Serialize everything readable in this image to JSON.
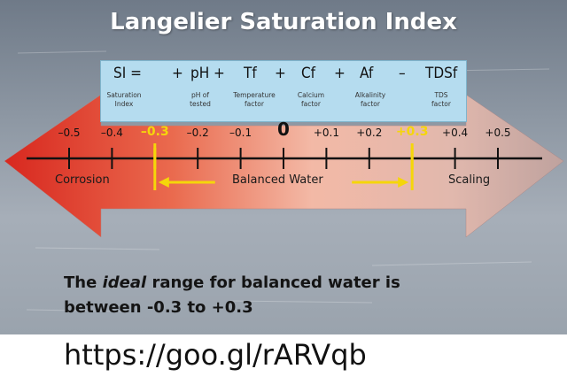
{
  "title": "Langelier Saturation Index",
  "formula": {
    "terms": [
      {
        "symbol": "SI =",
        "desc": [
          "Saturation",
          "Index"
        ]
      },
      {
        "symbol": "pH",
        "desc": [
          "pH of",
          "tested"
        ]
      },
      {
        "symbol": "Tf",
        "desc": [
          "Temperature",
          "factor"
        ]
      },
      {
        "symbol": "Cf",
        "desc": [
          "Calcium",
          "factor"
        ]
      },
      {
        "symbol": "Af",
        "desc": [
          "Alkalinity",
          "factor"
        ]
      },
      {
        "symbol": "TDSf",
        "desc": [
          "TDS",
          "factor"
        ]
      }
    ],
    "operators": [
      "+",
      "+",
      "+",
      "–"
    ]
  },
  "scale": {
    "ticks": [
      {
        "value": -0.5,
        "label": "–0.5"
      },
      {
        "value": -0.4,
        "label": "–0.4"
      },
      {
        "value": -0.3,
        "label": "–0.3",
        "highlight": true
      },
      {
        "value": -0.2,
        "label": "–0.2"
      },
      {
        "value": -0.1,
        "label": "–0.1"
      },
      {
        "value": 0,
        "label": "0"
      },
      {
        "value": 0.1,
        "label": "+0.1"
      },
      {
        "value": 0.2,
        "label": "+0.2"
      },
      {
        "value": 0.3,
        "label": "+0.3",
        "highlight": true
      },
      {
        "value": 0.4,
        "label": "+0.4"
      },
      {
        "value": 0.5,
        "label": "+0.5"
      }
    ],
    "balanced_range": [
      -0.3,
      0.3
    ]
  },
  "zones": {
    "left": "Corrosion",
    "center": "Balanced Water",
    "right": "Scaling"
  },
  "colors": {
    "corrosion": "#e0342a",
    "neutral": "#f0b4a0",
    "scaling": "#c9a6a0",
    "highlight": "#f5d60a",
    "formula_box": "#b5dcef"
  },
  "note": {
    "line1_pre": "The ",
    "line1_em": "ideal",
    "line1_post": " range for balanced water is",
    "line2": "between -0.3 to +0.3"
  },
  "url": "https://goo.gl/rARVqb"
}
